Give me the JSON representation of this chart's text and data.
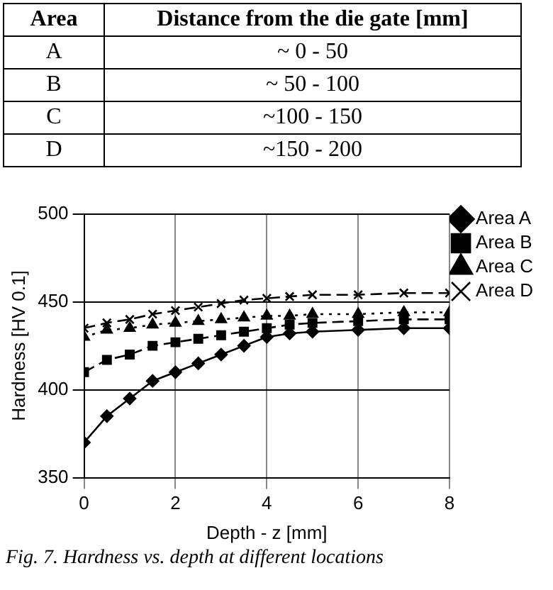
{
  "chart_data": {
    "type": "line",
    "xlabel": "Depth - z [mm]",
    "ylabel": "Hardness [HV 0.1]",
    "x": [
      0,
      0.5,
      1,
      1.5,
      2,
      2.5,
      3,
      3.5,
      4,
      4.5,
      5,
      6,
      7,
      8
    ],
    "series": [
      {
        "name": "Area A",
        "color": "#000000",
        "marker": "diamond",
        "line_style": "solid",
        "values": [
          370,
          385,
          395,
          405,
          410,
          415,
          420,
          425,
          430,
          432,
          433,
          434,
          435,
          435
        ]
      },
      {
        "name": "Area B",
        "color": "#000000",
        "marker": "square",
        "line_style": "dashed",
        "values": [
          410,
          417,
          420,
          425,
          427,
          429,
          431,
          433,
          435,
          437,
          438,
          439,
          440,
          440
        ]
      },
      {
        "name": "Area C",
        "color": "#000000",
        "marker": "triangle",
        "line_style": "dotted",
        "values": [
          430,
          434,
          435,
          437,
          438,
          439,
          440,
          441,
          442,
          442,
          443,
          443,
          444,
          444
        ]
      },
      {
        "name": "Area D",
        "color": "#000000",
        "marker": "cross",
        "line_style": "dashed",
        "values": [
          435,
          438,
          440,
          443,
          445,
          447,
          449,
          451,
          452,
          453,
          454,
          454,
          455,
          455
        ]
      }
    ],
    "xlim": [
      0,
      8
    ],
    "xticks": [
      0,
      2,
      4,
      6,
      8
    ],
    "ylim": [
      350,
      500
    ],
    "yticks": [
      350,
      400,
      450,
      500
    ],
    "grid": true,
    "legend": "right",
    "annotations": [
      "Area",
      "Distance from the die gate [mm]",
      "A",
      "~ 0 - 50",
      "B",
      "~ 50 - 100",
      "C",
      "~100 - 150",
      "D",
      "~150 - 200",
      "Fig. 7. Hardness vs. depth at different locations"
    ]
  }
}
